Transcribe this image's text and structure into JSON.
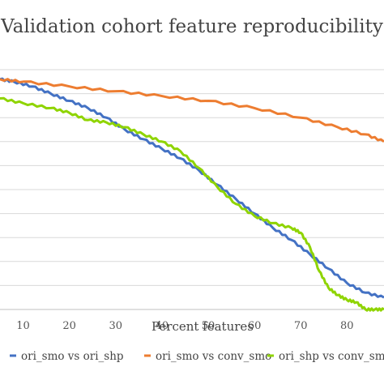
{
  "chart_data": {
    "type": "line",
    "title": "Validation cohort feature reproducibility",
    "xlabel": "Percent features",
    "ylabel": "",
    "x_ticks": [
      10,
      20,
      30,
      40,
      50,
      60,
      70,
      80
    ],
    "xlim": [
      5,
      88
    ],
    "ylim": [
      0,
      1
    ],
    "grid": "horizontal",
    "legend_position": "bottom",
    "series": [
      {
        "name": "ori_smo vs ori_shp",
        "color": "#4472c4",
        "points": [
          [
            5,
            0.96
          ],
          [
            8,
            0.95
          ],
          [
            12,
            0.93
          ],
          [
            16,
            0.9
          ],
          [
            20,
            0.87
          ],
          [
            24,
            0.84
          ],
          [
            28,
            0.8
          ],
          [
            32,
            0.75
          ],
          [
            36,
            0.71
          ],
          [
            40,
            0.67
          ],
          [
            44,
            0.63
          ],
          [
            48,
            0.58
          ],
          [
            52,
            0.52
          ],
          [
            56,
            0.46
          ],
          [
            60,
            0.4
          ],
          [
            64,
            0.34
          ],
          [
            68,
            0.29
          ],
          [
            72,
            0.23
          ],
          [
            76,
            0.17
          ],
          [
            80,
            0.11
          ],
          [
            84,
            0.07
          ],
          [
            88,
            0.05
          ]
        ]
      },
      {
        "name": "ori_smo vs conv_smo",
        "color": "#ed7d31",
        "points": [
          [
            5,
            0.96
          ],
          [
            10,
            0.95
          ],
          [
            20,
            0.93
          ],
          [
            30,
            0.91
          ],
          [
            40,
            0.89
          ],
          [
            50,
            0.87
          ],
          [
            60,
            0.84
          ],
          [
            70,
            0.8
          ],
          [
            78,
            0.76
          ],
          [
            84,
            0.73
          ],
          [
            88,
            0.7
          ]
        ]
      },
      {
        "name": "ori_shp vs conv_smo",
        "color": "#8fd400",
        "points": [
          [
            5,
            0.88
          ],
          [
            10,
            0.86
          ],
          [
            16,
            0.84
          ],
          [
            20,
            0.82
          ],
          [
            24,
            0.79
          ],
          [
            28,
            0.78
          ],
          [
            32,
            0.76
          ],
          [
            36,
            0.73
          ],
          [
            40,
            0.7
          ],
          [
            44,
            0.66
          ],
          [
            48,
            0.59
          ],
          [
            52,
            0.51
          ],
          [
            56,
            0.44
          ],
          [
            60,
            0.39
          ],
          [
            64,
            0.36
          ],
          [
            68,
            0.34
          ],
          [
            70,
            0.32
          ],
          [
            72,
            0.26
          ],
          [
            74,
            0.16
          ],
          [
            76,
            0.09
          ],
          [
            78,
            0.06
          ],
          [
            80,
            0.04
          ],
          [
            82,
            0.03
          ],
          [
            84,
            0.0
          ],
          [
            86,
            0.0
          ],
          [
            88,
            0.0
          ]
        ]
      }
    ]
  }
}
